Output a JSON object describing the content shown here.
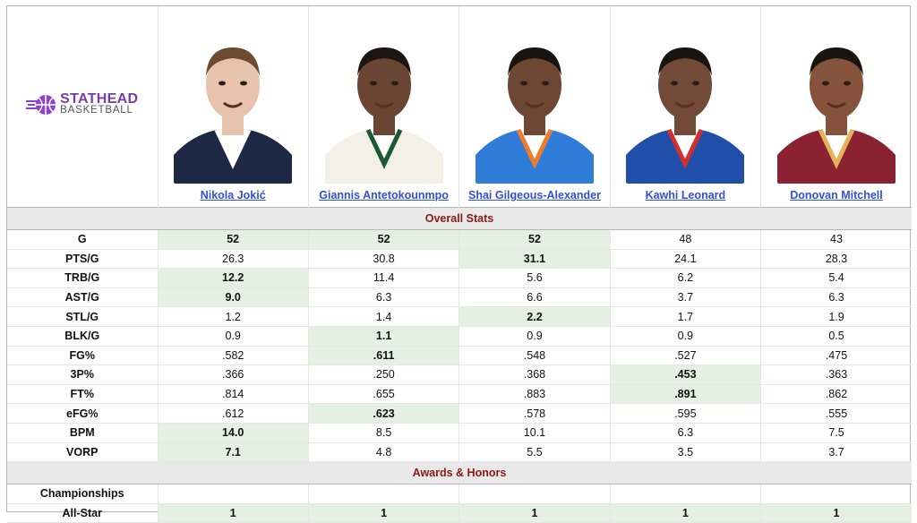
{
  "brand": {
    "line1": "STATHEAD",
    "line2": "BASKETBALL"
  },
  "players": [
    {
      "name": "Nikola Jokić",
      "skin": "#e7c3ad",
      "hair": "#6b4a2f",
      "jersey": "#1d2845",
      "trim": "#ffffff"
    },
    {
      "name": "Giannis Antetokounmpo",
      "skin": "#6a4533",
      "hair": "#1c1512",
      "jersey": "#f3f0e6",
      "trim": "#1b5b33"
    },
    {
      "name": "Shai Gilgeous-Alexander",
      "skin": "#6d4634",
      "hair": "#1a1411",
      "jersey": "#2f7bd8",
      "trim": "#f27a2b"
    },
    {
      "name": "Kawhi Leonard",
      "skin": "#714b38",
      "hair": "#1a1411",
      "jersey": "#1f4fa8",
      "trim": "#d32f2f"
    },
    {
      "name": "Donovan Mitchell",
      "skin": "#85533b",
      "hair": "#1a1411",
      "jersey": "#8a2231",
      "trim": "#e5b25c"
    }
  ],
  "sections": {
    "overall": "Overall Stats",
    "awards": "Awards & Honors"
  },
  "stats": [
    {
      "label": "G",
      "values": [
        "52",
        "52",
        "52",
        "48",
        "43"
      ],
      "best": [
        0,
        1,
        2
      ]
    },
    {
      "label": "PTS/G",
      "values": [
        "26.3",
        "30.8",
        "31.1",
        "24.1",
        "28.3"
      ],
      "best": [
        2
      ]
    },
    {
      "label": "TRB/G",
      "values": [
        "12.2",
        "11.4",
        "5.6",
        "6.2",
        "5.4"
      ],
      "best": [
        0
      ]
    },
    {
      "label": "AST/G",
      "values": [
        "9.0",
        "6.3",
        "6.6",
        "3.7",
        "6.3"
      ],
      "best": [
        0
      ]
    },
    {
      "label": "STL/G",
      "values": [
        "1.2",
        "1.4",
        "2.2",
        "1.7",
        "1.9"
      ],
      "best": [
        2
      ]
    },
    {
      "label": "BLK/G",
      "values": [
        "0.9",
        "1.1",
        "0.9",
        "0.9",
        "0.5"
      ],
      "best": [
        1
      ]
    },
    {
      "label": "FG%",
      "values": [
        ".582",
        ".611",
        ".548",
        ".527",
        ".475"
      ],
      "best": [
        1
      ]
    },
    {
      "label": "3P%",
      "values": [
        ".366",
        ".250",
        ".368",
        ".453",
        ".363"
      ],
      "best": [
        3
      ]
    },
    {
      "label": "FT%",
      "values": [
        ".814",
        ".655",
        ".883",
        ".891",
        ".862"
      ],
      "best": [
        3
      ]
    },
    {
      "label": "eFG%",
      "values": [
        ".612",
        ".623",
        ".578",
        ".595",
        ".555"
      ],
      "best": [
        1
      ]
    },
    {
      "label": "BPM",
      "values": [
        "14.0",
        "8.5",
        "10.1",
        "6.3",
        "7.5"
      ],
      "best": [
        0
      ]
    },
    {
      "label": "VORP",
      "values": [
        "7.1",
        "4.8",
        "5.5",
        "3.5",
        "3.7"
      ],
      "best": [
        0
      ]
    }
  ],
  "awards": [
    {
      "label": "Championships",
      "values": [
        "",
        "",
        "",
        "",
        ""
      ],
      "best": []
    },
    {
      "label": "All-Star",
      "values": [
        "1",
        "1",
        "1",
        "1",
        "1"
      ],
      "best": [
        0,
        1,
        2,
        3,
        4
      ]
    }
  ]
}
